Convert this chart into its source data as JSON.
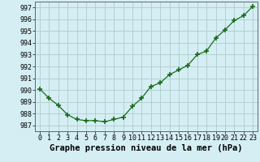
{
  "x": [
    0,
    1,
    2,
    3,
    4,
    5,
    6,
    7,
    8,
    9,
    10,
    11,
    12,
    13,
    14,
    15,
    16,
    17,
    18,
    19,
    20,
    21,
    22,
    23
  ],
  "y": [
    990.1,
    989.3,
    988.7,
    987.9,
    987.5,
    987.4,
    987.4,
    987.3,
    987.5,
    987.7,
    988.6,
    989.3,
    990.3,
    990.6,
    991.3,
    991.7,
    992.1,
    993.0,
    993.3,
    994.4,
    995.1,
    995.9,
    996.3,
    997.1
  ],
  "line_color": "#1a6b1a",
  "marker": "+",
  "marker_size": 4,
  "marker_edge_width": 1.2,
  "bg_color": "#d4eef4",
  "grid_color": "#b0cccc",
  "xlabel": "Graphe pression niveau de la mer (hPa)",
  "xlabel_fontsize": 7.5,
  "tick_fontsize": 6,
  "ylim": [
    986.5,
    997.5
  ],
  "xlim": [
    -0.5,
    23.5
  ],
  "yticks": [
    987,
    988,
    989,
    990,
    991,
    992,
    993,
    994,
    995,
    996,
    997
  ],
  "xticks": [
    0,
    1,
    2,
    3,
    4,
    5,
    6,
    7,
    8,
    9,
    10,
    11,
    12,
    13,
    14,
    15,
    16,
    17,
    18,
    19,
    20,
    21,
    22,
    23
  ]
}
